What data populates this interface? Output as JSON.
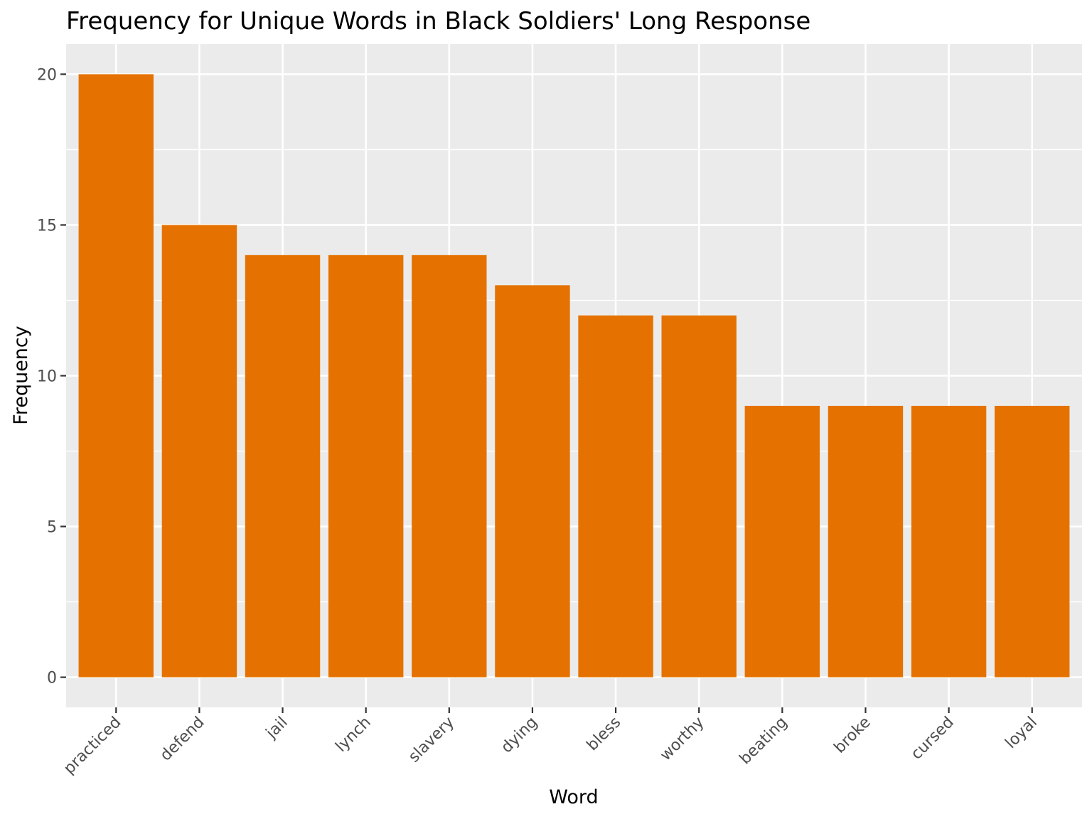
{
  "chart_data": {
    "type": "bar",
    "title": "Frequency for Unique Words in Black Soldiers' Long Response",
    "xlabel": "Word",
    "ylabel": "Frequency",
    "categories": [
      "practiced",
      "defend",
      "jail",
      "lynch",
      "slavery",
      "dying",
      "bless",
      "worthy",
      "beating",
      "broke",
      "cursed",
      "loyal"
    ],
    "values": [
      20,
      15,
      14,
      14,
      14,
      13,
      12,
      12,
      9,
      9,
      9,
      9
    ],
    "ylim": [
      -1,
      21
    ],
    "yticks": [
      0,
      5,
      10,
      15,
      20
    ],
    "grid": true,
    "bar_color": "#E57200",
    "panel_background": "#EBEBEB",
    "grid_color": "#FFFFFF"
  }
}
